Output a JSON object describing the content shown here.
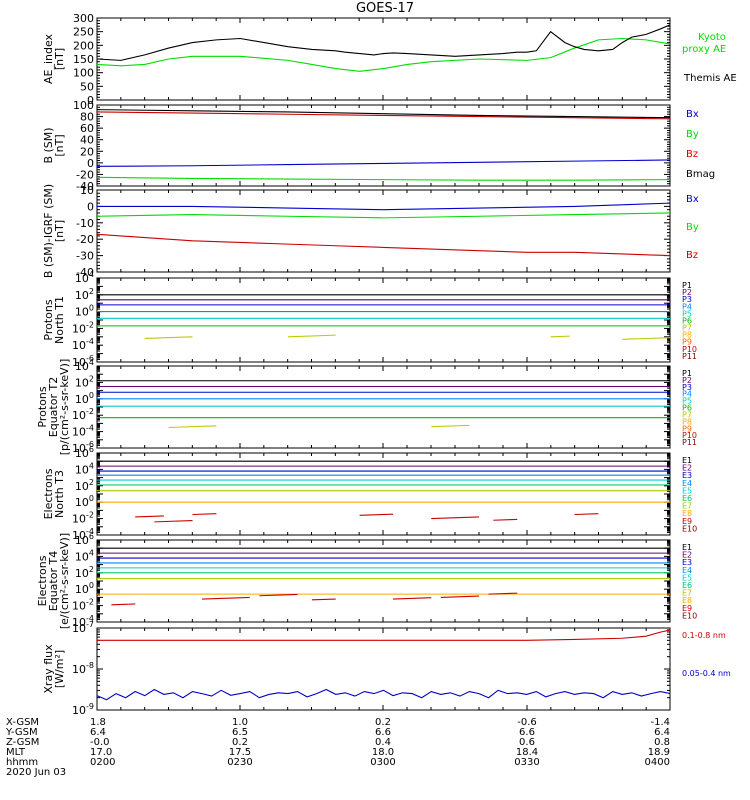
{
  "title": "GOES-17",
  "chart_data": [
    {
      "type": "line",
      "id": "ae",
      "ylabel": [
        "AE_index",
        "[nT]"
      ],
      "ylim": [
        0,
        300
      ],
      "yticks": [
        0,
        50,
        100,
        150,
        200,
        250,
        300
      ],
      "xlim": [
        0,
        120
      ],
      "series": [
        {
          "name": "Kyoto",
          "label2": "proxy AE",
          "color": "#00dd00",
          "x": [
            0,
            5,
            10,
            15,
            20,
            30,
            40,
            45,
            50,
            55,
            60,
            65,
            70,
            80,
            90,
            95,
            100,
            105,
            110,
            115,
            120
          ],
          "values": [
            130,
            125,
            130,
            150,
            160,
            160,
            145,
            130,
            115,
            105,
            115,
            130,
            140,
            150,
            145,
            155,
            190,
            220,
            225,
            220,
            205
          ]
        },
        {
          "name": "Themis AE",
          "color": "#000000",
          "x": [
            0,
            5,
            10,
            15,
            20,
            25,
            30,
            35,
            40,
            45,
            50,
            52,
            55,
            58,
            60,
            62,
            65,
            70,
            75,
            80,
            85,
            88,
            90,
            92,
            95,
            98,
            100,
            102,
            105,
            108,
            110,
            112,
            115,
            118,
            120
          ],
          "values": [
            150,
            145,
            165,
            190,
            210,
            220,
            225,
            210,
            195,
            185,
            180,
            175,
            170,
            165,
            170,
            172,
            170,
            165,
            160,
            165,
            170,
            175,
            175,
            180,
            250,
            210,
            195,
            185,
            180,
            185,
            210,
            230,
            240,
            260,
            275
          ]
        }
      ]
    },
    {
      "type": "line",
      "id": "bsm",
      "ylabel": [
        "B (SM)",
        "[nT]"
      ],
      "ylim": [
        -40,
        100
      ],
      "yticks": [
        -40,
        -20,
        0,
        20,
        40,
        60,
        80,
        100
      ],
      "xlim": [
        0,
        120
      ],
      "series": [
        {
          "name": "Bx",
          "color": "#0000cc",
          "x": [
            0,
            20,
            40,
            60,
            80,
            100,
            120
          ],
          "values": [
            -6,
            -5,
            -3,
            -1,
            1,
            3,
            5
          ]
        },
        {
          "name": "By",
          "color": "#00dd00",
          "x": [
            0,
            20,
            40,
            60,
            80,
            100,
            120
          ],
          "values": [
            -25,
            -27,
            -28,
            -29,
            -30,
            -30,
            -29
          ]
        },
        {
          "name": "Bz",
          "color": "#cc0000",
          "x": [
            0,
            20,
            40,
            60,
            80,
            100,
            120
          ],
          "values": [
            88,
            86,
            84,
            82,
            80,
            78,
            76
          ]
        },
        {
          "name": "Bmag",
          "color": "#000000",
          "x": [
            0,
            20,
            40,
            60,
            80,
            100,
            120
          ],
          "values": [
            92,
            90,
            88,
            85,
            82,
            80,
            78
          ]
        }
      ]
    },
    {
      "type": "line",
      "id": "bigrf",
      "ylabel": [
        "B (SM)-IGRF (SM)",
        "[nT]"
      ],
      "ylim": [
        -40,
        10
      ],
      "yticks": [
        -40,
        -30,
        -20,
        -10,
        0,
        10
      ],
      "xlim": [
        0,
        120
      ],
      "series": [
        {
          "name": "Bx",
          "color": "#0000cc",
          "x": [
            0,
            20,
            40,
            60,
            80,
            100,
            120
          ],
          "values": [
            0,
            0,
            -1,
            -2,
            -1,
            0,
            2
          ]
        },
        {
          "name": "By",
          "color": "#00dd00",
          "x": [
            0,
            20,
            40,
            60,
            80,
            100,
            120
          ],
          "values": [
            -6,
            -5,
            -6,
            -7,
            -6,
            -5,
            -4
          ]
        },
        {
          "name": "Bz",
          "color": "#cc0000",
          "x": [
            0,
            10,
            20,
            30,
            40,
            50,
            60,
            70,
            80,
            90,
            100,
            110,
            120
          ],
          "values": [
            -17,
            -19,
            -21,
            -22,
            -23,
            -24,
            -25,
            -26,
            -27,
            -28,
            -28,
            -29,
            -30
          ]
        }
      ]
    },
    {
      "type": "line",
      "log": true,
      "id": "protons_t1",
      "ylabel": [
        "Protons",
        "North T1"
      ],
      "ylim_exp": [
        -6,
        4
      ],
      "ytick_exps": [
        -6,
        -4,
        -2,
        0,
        2,
        4
      ],
      "xlim": [
        0,
        120
      ],
      "series": [
        {
          "name": "P1",
          "color": "#000000",
          "log_levels": [
            2.0
          ]
        },
        {
          "name": "P2",
          "color": "#660066",
          "log_levels": [
            1.4
          ]
        },
        {
          "name": "P3",
          "color": "#0000cc",
          "log_levels": [
            0.8
          ]
        },
        {
          "name": "P4",
          "color": "#0088ff",
          "log_levels": [
            0.0
          ]
        },
        {
          "name": "P5",
          "color": "#00cccc",
          "log_levels": [
            -0.8
          ]
        },
        {
          "name": "P6",
          "color": "#00bb00",
          "log_levels": [
            -1.7
          ]
        },
        {
          "name": "P7",
          "color": "#bbcc00",
          "segments": [
            [
              10,
              20,
              -3.2
            ],
            [
              40,
              50,
              -3.0
            ],
            [
              95,
              99,
              -3.0
            ],
            [
              110,
              120,
              -3.3
            ]
          ]
        },
        {
          "name": "P8",
          "color": "#ffaa00",
          "log_levels": []
        },
        {
          "name": "P9",
          "color": "#ff6600",
          "log_levels": []
        },
        {
          "name": "P10",
          "color": "#cc0000",
          "log_levels": []
        },
        {
          "name": "P11",
          "color": "#880000",
          "log_levels": []
        }
      ]
    },
    {
      "type": "line",
      "log": true,
      "id": "protons_t2",
      "ylabel": [
        "Protons",
        "Equator T2",
        "[p/(cm²-s-sr-keV)]"
      ],
      "ylim_exp": [
        -6,
        4
      ],
      "ytick_exps": [
        -6,
        -4,
        -2,
        0,
        2,
        4
      ],
      "xlim": [
        0,
        120
      ],
      "series": [
        {
          "name": "P1",
          "color": "#000000",
          "log_levels": [
            2.2
          ]
        },
        {
          "name": "P2",
          "color": "#660066",
          "log_levels": [
            1.5
          ]
        },
        {
          "name": "P3",
          "color": "#0000cc",
          "log_levels": [
            0.8
          ]
        },
        {
          "name": "P4",
          "color": "#0088ff",
          "log_levels": [
            0.0
          ]
        },
        {
          "name": "P5",
          "color": "#00cccc",
          "log_levels": [
            -0.9
          ]
        },
        {
          "name": "P6",
          "color": "#00bb00",
          "log_levels": [
            -2.3
          ]
        },
        {
          "name": "P7",
          "color": "#bbcc00",
          "segments": [
            [
              15,
              25,
              -3.5
            ],
            [
              70,
              78,
              -3.4
            ]
          ]
        },
        {
          "name": "P8",
          "color": "#ffaa00",
          "log_levels": []
        },
        {
          "name": "P9",
          "color": "#ff6600",
          "log_levels": []
        },
        {
          "name": "P10",
          "color": "#cc0000",
          "log_levels": []
        },
        {
          "name": "P11",
          "color": "#880000",
          "log_levels": []
        }
      ]
    },
    {
      "type": "line",
      "log": true,
      "id": "electrons_t3",
      "ylabel": [
        "Electrons",
        "North T3"
      ],
      "ylim_exp": [
        -4,
        6
      ],
      "ytick_exps": [
        -4,
        -2,
        0,
        2,
        4,
        6
      ],
      "xlim": [
        0,
        120
      ],
      "series": [
        {
          "name": "E1",
          "color": "#000000",
          "log_levels": [
            5.0
          ]
        },
        {
          "name": "E2",
          "color": "#660066",
          "log_levels": [
            4.4
          ]
        },
        {
          "name": "E3",
          "color": "#0000cc",
          "log_levels": [
            3.8
          ]
        },
        {
          "name": "E4",
          "color": "#0088ff",
          "log_levels": [
            3.3
          ]
        },
        {
          "name": "E5",
          "color": "#00cccc",
          "log_levels": [
            2.7
          ]
        },
        {
          "name": "E6",
          "color": "#00cc66",
          "log_levels": [
            2.1
          ]
        },
        {
          "name": "E7",
          "color": "#aacc00",
          "log_levels": [
            1.4
          ]
        },
        {
          "name": "E8",
          "color": "#ffaa00",
          "log_levels": [
            0.0
          ]
        },
        {
          "name": "E9",
          "color": "#cc0000",
          "segments": [
            [
              8,
              14,
              -1.8
            ],
            [
              12,
              20,
              -2.4
            ],
            [
              20,
              25,
              -1.5
            ],
            [
              55,
              62,
              -1.6
            ],
            [
              70,
              80,
              -2.0
            ],
            [
              83,
              88,
              -2.2
            ],
            [
              100,
              105,
              -1.5
            ]
          ]
        },
        {
          "name": "E10",
          "color": "#880000",
          "log_levels": []
        }
      ]
    },
    {
      "type": "line",
      "log": true,
      "id": "electrons_t4",
      "ylabel": [
        "Electrons",
        "Equator T4",
        "[e/(cm²-s-sr-keV)]"
      ],
      "ylim_exp": [
        -4,
        6
      ],
      "ytick_exps": [
        -4,
        -2,
        0,
        2,
        4,
        6
      ],
      "xlim": [
        0,
        120
      ],
      "series": [
        {
          "name": "E1",
          "color": "#000000",
          "log_levels": [
            5.0
          ]
        },
        {
          "name": "E2",
          "color": "#660066",
          "log_levels": [
            4.4
          ]
        },
        {
          "name": "E3",
          "color": "#0000cc",
          "log_levels": [
            3.8
          ]
        },
        {
          "name": "E4",
          "color": "#0088ff",
          "log_levels": [
            3.2
          ]
        },
        {
          "name": "E5",
          "color": "#00cccc",
          "log_levels": [
            2.6
          ]
        },
        {
          "name": "E6",
          "color": "#00cc66",
          "log_levels": [
            2.0
          ]
        },
        {
          "name": "E7",
          "color": "#aacc00",
          "log_levels": [
            1.3
          ]
        },
        {
          "name": "E8",
          "color": "#ffaa00",
          "log_levels": [
            -0.6
          ]
        },
        {
          "name": "E9",
          "color": "#cc0000",
          "segments": [
            [
              3,
              8,
              -1.9
            ],
            [
              22,
              32,
              -1.2
            ],
            [
              34,
              42,
              -0.8
            ],
            [
              45,
              50,
              -1.3
            ],
            [
              62,
              70,
              -1.2
            ],
            [
              72,
              80,
              -1.0
            ],
            [
              82,
              88,
              -0.6
            ]
          ]
        },
        {
          "name": "E10",
          "color": "#880000",
          "log_levels": []
        }
      ]
    },
    {
      "type": "line",
      "log": true,
      "id": "xray",
      "ylabel": [
        "Xray flux",
        "[W/m²]"
      ],
      "ylim_exp": [
        -9,
        -7
      ],
      "ytick_exps": [
        -9,
        -8,
        -7
      ],
      "xlim": [
        0,
        120
      ],
      "series": [
        {
          "name": "0.1-0.8 nm",
          "color": "#cc0000",
          "x": [
            0,
            10,
            20,
            30,
            40,
            50,
            60,
            70,
            80,
            90,
            100,
            110,
            115,
            118,
            120
          ],
          "values_exp": [
            -7.3,
            -7.3,
            -7.3,
            -7.3,
            -7.3,
            -7.3,
            -7.3,
            -7.3,
            -7.3,
            -7.3,
            -7.28,
            -7.25,
            -7.2,
            -7.1,
            -7.05
          ]
        },
        {
          "name": "0.05-0.4 nm",
          "color": "#0000cc",
          "x": [
            0,
            2,
            4,
            6,
            8,
            10,
            12,
            14,
            16,
            18,
            20,
            22,
            24,
            26,
            28,
            30,
            32,
            34,
            36,
            38,
            40,
            42,
            44,
            46,
            48,
            50,
            52,
            54,
            56,
            58,
            60,
            62,
            64,
            66,
            68,
            70,
            72,
            74,
            76,
            78,
            80,
            82,
            84,
            86,
            88,
            90,
            92,
            94,
            96,
            98,
            100,
            102,
            104,
            106,
            108,
            110,
            112,
            114,
            116,
            118,
            120
          ],
          "values_exp": [
            -8.65,
            -8.75,
            -8.6,
            -8.7,
            -8.55,
            -8.65,
            -8.5,
            -8.62,
            -8.58,
            -8.7,
            -8.55,
            -8.6,
            -8.66,
            -8.52,
            -8.64,
            -8.6,
            -8.55,
            -8.7,
            -8.62,
            -8.58,
            -8.6,
            -8.55,
            -8.68,
            -8.6,
            -8.5,
            -8.62,
            -8.58,
            -8.66,
            -8.55,
            -8.6,
            -8.52,
            -8.65,
            -8.58,
            -8.6,
            -8.7,
            -8.55,
            -8.62,
            -8.58,
            -8.66,
            -8.55,
            -8.6,
            -8.7,
            -8.52,
            -8.6,
            -8.58,
            -8.62,
            -8.55,
            -8.68,
            -8.6,
            -8.55,
            -8.62,
            -8.58,
            -8.6,
            -8.7,
            -8.55,
            -8.62,
            -8.58,
            -8.66,
            -8.6,
            -8.55,
            -8.6
          ]
        }
      ]
    }
  ],
  "orbit_table": {
    "rows": [
      {
        "label": "X-GSM",
        "values": [
          "1.8",
          "1.0",
          "0.2",
          "-0.6",
          "-1.4"
        ]
      },
      {
        "label": "Y-GSM",
        "values": [
          "6.4",
          "6.5",
          "6.6",
          "6.6",
          "6.4"
        ]
      },
      {
        "label": "Z-GSM",
        "values": [
          "-0.0",
          "0.2",
          "0.4",
          "0.6",
          "0.8"
        ]
      },
      {
        "label": "MLT",
        "values": [
          "17.0",
          "17.5",
          "18.0",
          "18.4",
          "18.9"
        ]
      },
      {
        "label": "hhmm",
        "values": [
          "0200",
          "0230",
          "0300",
          "0330",
          "0400"
        ]
      }
    ],
    "date": "2020 Jun 03"
  }
}
